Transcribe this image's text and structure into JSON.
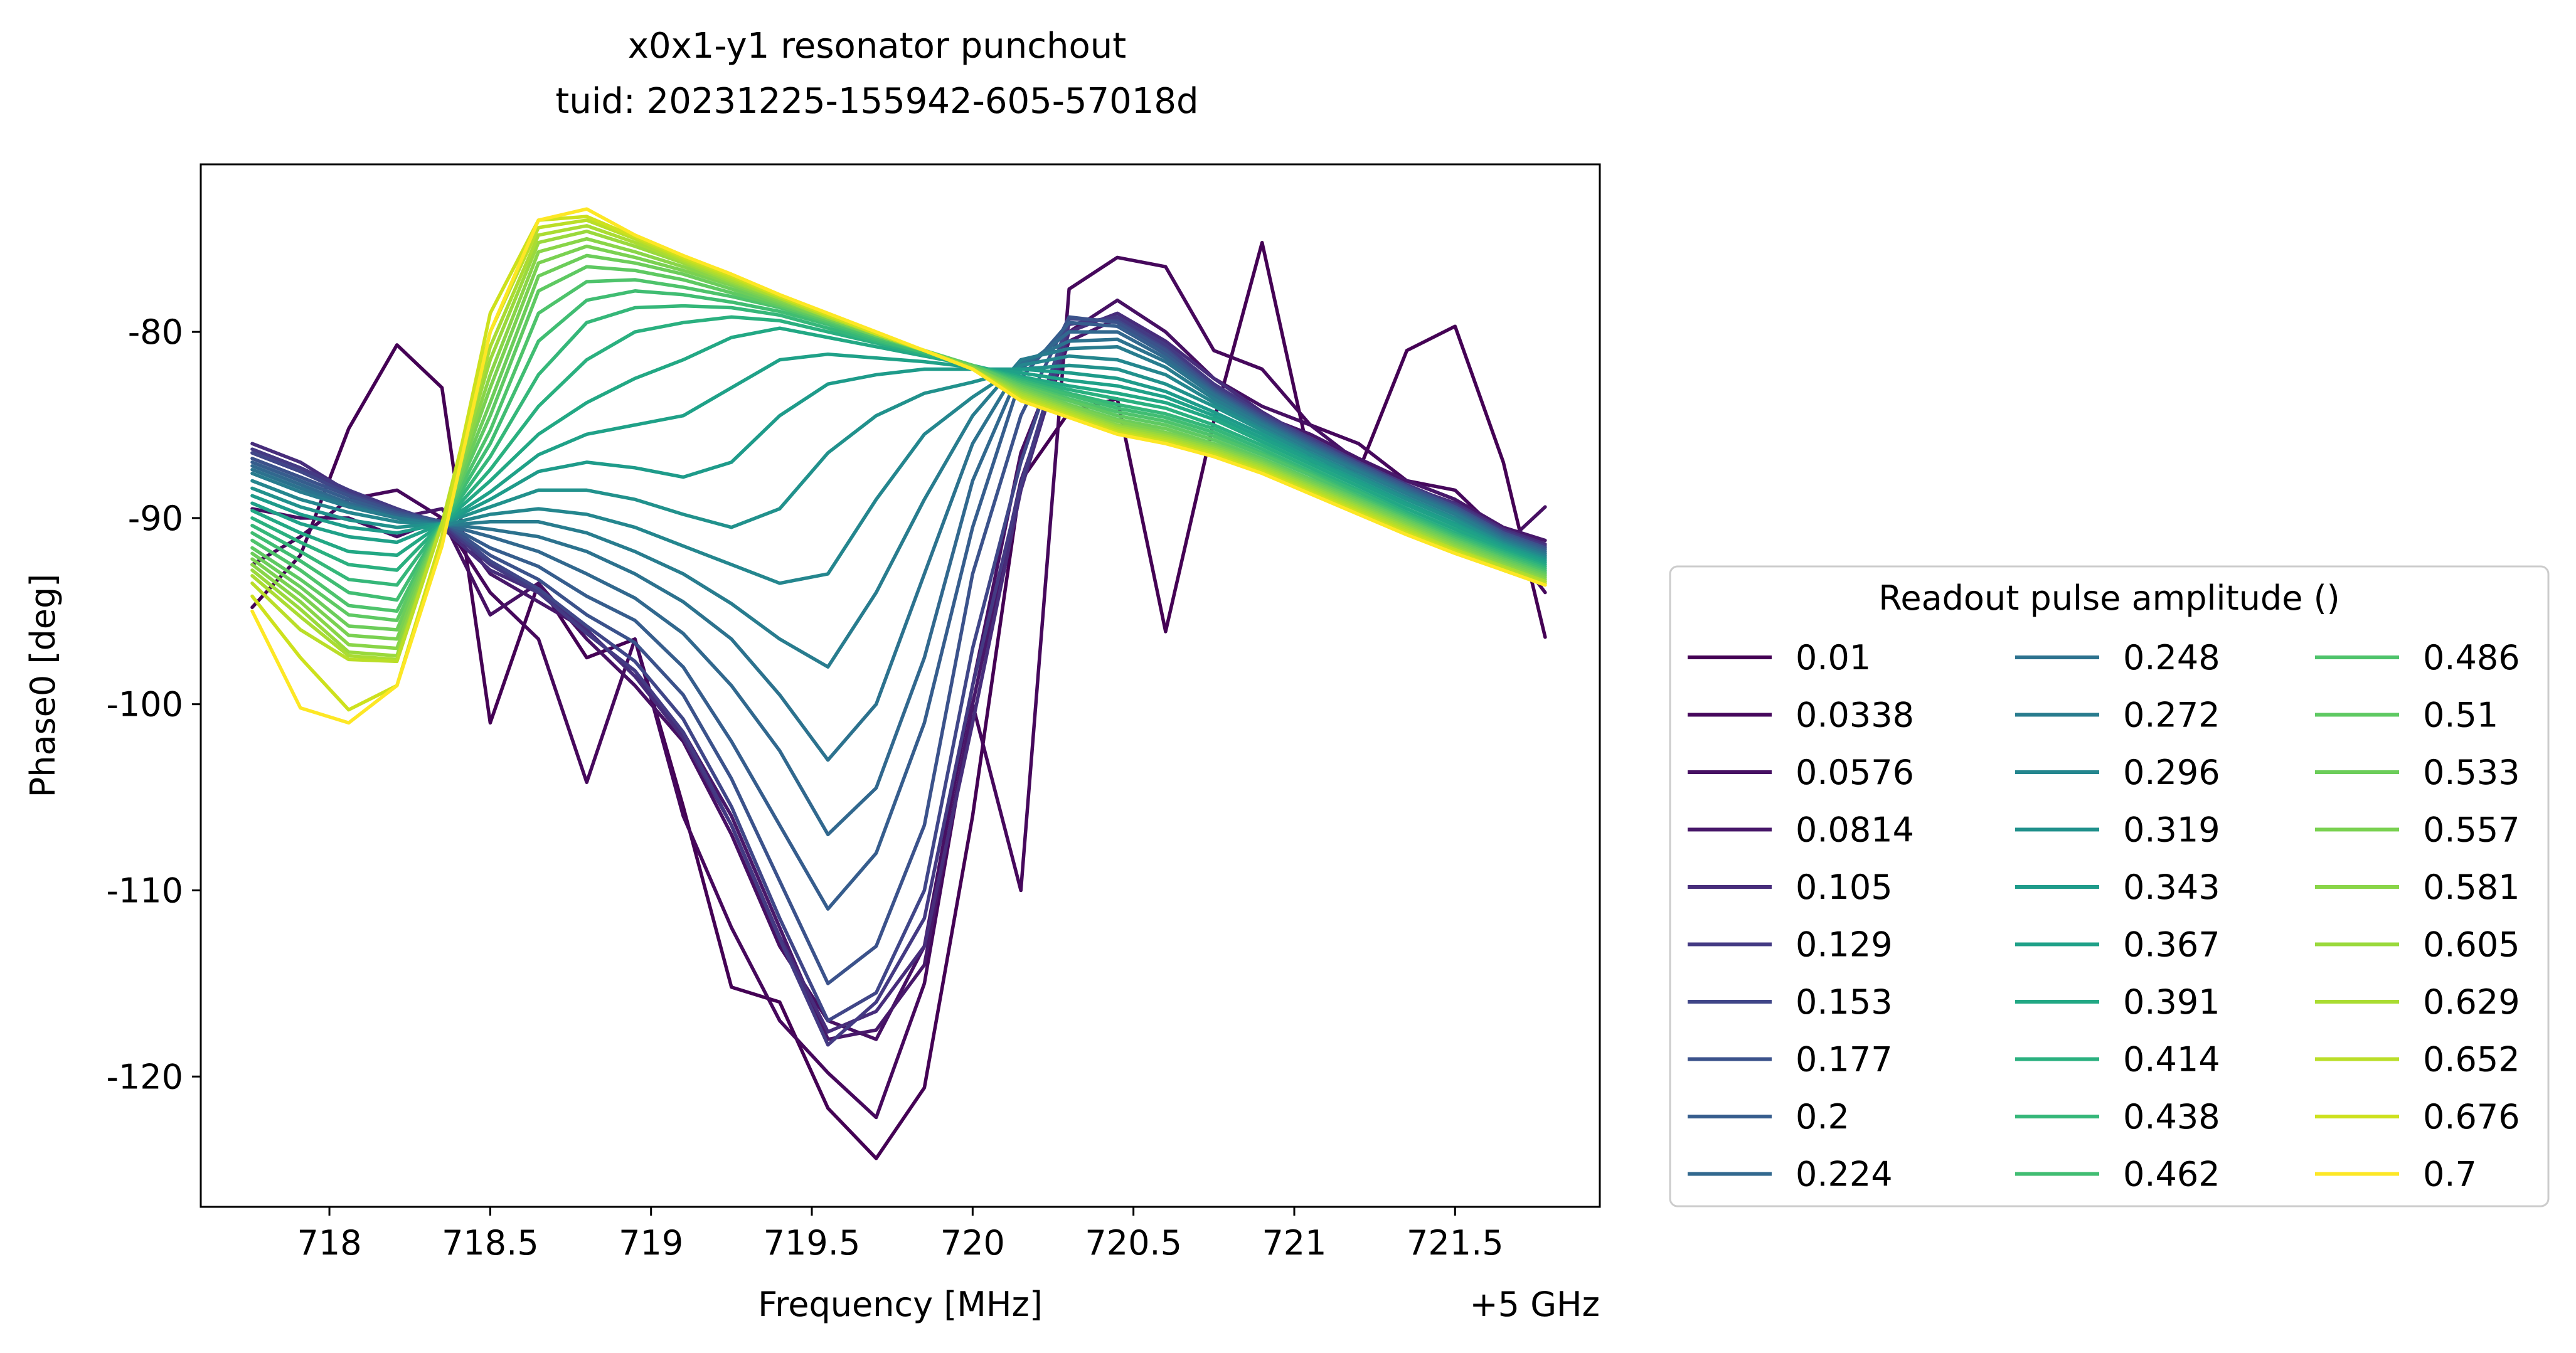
{
  "chart_data": {
    "type": "line",
    "title_line1": "x0x1-y1 resonator punchout",
    "title_line2": "tuid: 20231225-155942-605-57018d",
    "xlabel": "Frequency [MHz]",
    "ylabel": "Phase0 [deg]",
    "x_offset_label": "+5 GHz",
    "xlim": [
      717.6,
      721.95
    ],
    "ylim": [
      -127,
      -71
    ],
    "xticks": [
      718,
      718.5,
      719,
      719.5,
      720,
      720.5,
      721,
      721.5
    ],
    "xtick_labels": [
      "718",
      "718.5",
      "719",
      "719.5",
      "720",
      "720.5",
      "721",
      "721.5"
    ],
    "yticks": [
      -80,
      -90,
      -100,
      -110,
      -120
    ],
    "ytick_labels": [
      "-80",
      "-90",
      "-100",
      "-110",
      "-120"
    ],
    "grid": false,
    "legend_title": "Readout pulse amplitude ()",
    "legend_position": "lower-right-outside",
    "legend_columns": 3,
    "x": [
      717.76,
      717.91,
      718.06,
      718.21,
      718.35,
      718.5,
      718.65,
      718.8,
      718.95,
      719.1,
      719.25,
      719.4,
      719.55,
      719.7,
      719.85,
      720.0,
      720.15,
      720.3,
      720.45,
      720.6,
      720.75,
      720.9,
      721.05,
      721.2,
      721.35,
      721.5,
      721.65,
      721.78
    ],
    "series": [
      {
        "name": "0.01",
        "color": "#440154",
        "values": [
          -94.8,
          -92.0,
          -85.2,
          -80.7,
          -83.0,
          -101.0,
          -93.5,
          -97.5,
          -96.5,
          -105.5,
          -115.2,
          -116.0,
          -121.7,
          -124.4,
          -120.6,
          -106.0,
          -88.0,
          -84.3,
          -83.6,
          -96.1,
          -84.8,
          -75.2,
          -87.0,
          -87.5,
          -81.0,
          -79.7,
          -87.0,
          -96.4
        ]
      },
      {
        "name": "0.0338",
        "color": "#46085c",
        "values": [
          -92.5,
          -91.0,
          -89.0,
          -88.5,
          -90.0,
          -94.0,
          -96.5,
          -104.2,
          -96.5,
          -106.0,
          -112.0,
          -117.0,
          -119.8,
          -122.2,
          -115.0,
          -100.0,
          -110.0,
          -77.7,
          -76.0,
          -76.5,
          -81.0,
          -82.0,
          -85.0,
          -86.0,
          -88.0,
          -88.5,
          -91.0,
          -94.0
        ]
      },
      {
        "name": "0.0576",
        "color": "#471063",
        "values": [
          -89.5,
          -90.0,
          -90.0,
          -91.0,
          -90.0,
          -95.2,
          -93.5,
          -96.5,
          -99.0,
          -102.0,
          -107.0,
          -113.0,
          -117.0,
          -118.0,
          -113.0,
          -99.0,
          -86.5,
          -80.0,
          -78.3,
          -80.0,
          -82.5,
          -84.0,
          -85.0,
          -87.0,
          -88.0,
          -89.0,
          -91.5,
          -89.4
        ]
      },
      {
        "name": "0.0814",
        "color": "#48186a",
        "values": [
          -86.5,
          -87.5,
          -88.5,
          -90.0,
          -89.5,
          -93.0,
          -94.5,
          -96.0,
          -98.5,
          -101.5,
          -106.0,
          -112.0,
          -118.0,
          -117.5,
          -114.0,
          -100.0,
          -88.0,
          -80.5,
          -79.3,
          -81.0,
          -83.0,
          -84.5,
          -85.5,
          -86.8,
          -88.0,
          -89.0,
          -90.5,
          -91.2
        ]
      },
      {
        "name": "0.105",
        "color": "#472d7b",
        "values": [
          -86.0,
          -87.0,
          -88.6,
          -89.5,
          -90.5,
          -92.8,
          -94.0,
          -96.0,
          -98.5,
          -101.8,
          -106.5,
          -112.5,
          -117.6,
          -116.5,
          -113.0,
          -101.0,
          -88.5,
          -80.0,
          -79.0,
          -80.5,
          -82.5,
          -84.3,
          -85.8,
          -87.0,
          -88.3,
          -89.2,
          -90.6,
          -91.4
        ]
      },
      {
        "name": "0.129",
        "color": "#443a83",
        "values": [
          -86.3,
          -87.3,
          -88.5,
          -89.5,
          -90.3,
          -92.5,
          -94.0,
          -96.2,
          -98.2,
          -101.5,
          -106.5,
          -112.6,
          -118.3,
          -116.0,
          -111.5,
          -99.0,
          -88.2,
          -79.6,
          -79.2,
          -80.7,
          -82.8,
          -84.4,
          -85.7,
          -87.0,
          -88.2,
          -89.3,
          -90.7,
          -91.5
        ]
      },
      {
        "name": "0.153",
        "color": "#404688",
        "values": [
          -86.5,
          -87.5,
          -88.7,
          -89.6,
          -90.2,
          -92.3,
          -93.8,
          -95.8,
          -97.7,
          -100.8,
          -105.5,
          -111.5,
          -117.0,
          -115.5,
          -110.0,
          -97.0,
          -87.0,
          -79.3,
          -79.4,
          -80.9,
          -83.0,
          -84.5,
          -85.8,
          -87.1,
          -88.3,
          -89.4,
          -90.8,
          -91.6
        ]
      },
      {
        "name": "0.177",
        "color": "#3b528b",
        "values": [
          -86.8,
          -87.8,
          -88.8,
          -89.7,
          -90.2,
          -92.0,
          -93.3,
          -95.2,
          -96.7,
          -99.5,
          -104.0,
          -109.5,
          -115.0,
          -113.0,
          -106.5,
          -93.0,
          -84.5,
          -79.2,
          -79.5,
          -81.0,
          -83.1,
          -84.6,
          -85.9,
          -87.1,
          -88.3,
          -89.4,
          -90.8,
          -91.6
        ]
      },
      {
        "name": "0.2",
        "color": "#365d8d",
        "values": [
          -87.0,
          -88.0,
          -89.0,
          -89.8,
          -90.2,
          -91.6,
          -92.6,
          -94.2,
          -95.5,
          -98.0,
          -102.0,
          -106.5,
          -111.0,
          -108.0,
          -101.0,
          -90.5,
          -82.5,
          -79.5,
          -79.7,
          -81.2,
          -83.2,
          -84.7,
          -86.0,
          -87.2,
          -88.4,
          -89.5,
          -90.9,
          -91.7
        ]
      },
      {
        "name": "0.224",
        "color": "#31688e",
        "values": [
          -87.2,
          -88.2,
          -89.2,
          -89.9,
          -90.3,
          -91.0,
          -91.8,
          -93.0,
          -94.3,
          -96.2,
          -99.0,
          -102.5,
          -107.0,
          -104.5,
          -97.5,
          -88.0,
          -82.0,
          -80.0,
          -80.0,
          -81.4,
          -83.3,
          -84.8,
          -86.1,
          -87.3,
          -88.5,
          -89.6,
          -91.0,
          -91.8
        ]
      },
      {
        "name": "0.248",
        "color": "#2c728e",
        "values": [
          -87.4,
          -88.4,
          -89.3,
          -90.0,
          -90.3,
          -90.6,
          -91.0,
          -91.8,
          -93.0,
          -94.5,
          -96.5,
          -99.5,
          -103.0,
          -100.0,
          -93.0,
          -86.0,
          -81.7,
          -80.5,
          -80.4,
          -81.6,
          -83.4,
          -84.9,
          -86.2,
          -87.4,
          -88.6,
          -89.7,
          -91.1,
          -91.9
        ]
      },
      {
        "name": "0.272",
        "color": "#287c8e",
        "values": [
          -87.6,
          -88.6,
          -89.4,
          -90.0,
          -90.4,
          -90.2,
          -90.2,
          -90.8,
          -91.8,
          -93.0,
          -94.6,
          -96.5,
          -98.0,
          -94.0,
          -89.0,
          -84.5,
          -81.5,
          -80.9,
          -80.8,
          -81.9,
          -83.6,
          -85.0,
          -86.3,
          -87.5,
          -88.7,
          -89.8,
          -91.2,
          -92.0
        ]
      },
      {
        "name": "0.296",
        "color": "#24868e",
        "values": [
          -88.0,
          -89.0,
          -89.7,
          -90.2,
          -90.4,
          -89.8,
          -89.5,
          -89.8,
          -90.5,
          -91.5,
          -92.5,
          -93.5,
          -93.0,
          -89.0,
          -85.5,
          -83.5,
          -81.8,
          -81.3,
          -81.5,
          -82.3,
          -83.8,
          -85.2,
          -86.5,
          -87.7,
          -88.9,
          -90.0,
          -91.3,
          -92.1
        ]
      },
      {
        "name": "0.319",
        "color": "#21918c",
        "values": [
          -88.4,
          -89.4,
          -90.1,
          -90.5,
          -90.3,
          -89.4,
          -88.5,
          -88.5,
          -89.0,
          -89.8,
          -90.5,
          -89.5,
          -86.5,
          -84.5,
          -83.3,
          -82.7,
          -82.0,
          -81.8,
          -82.0,
          -82.8,
          -84.0,
          -85.3,
          -86.6,
          -87.8,
          -89.0,
          -90.1,
          -91.4,
          -92.2
        ]
      },
      {
        "name": "0.343",
        "color": "#1e9b8a",
        "values": [
          -88.8,
          -89.8,
          -90.5,
          -90.8,
          -90.3,
          -89.0,
          -87.5,
          -87.0,
          -87.3,
          -87.8,
          -87.0,
          -84.5,
          -82.8,
          -82.3,
          -82.0,
          -82.0,
          -82.0,
          -82.2,
          -82.5,
          -83.2,
          -84.3,
          -85.5,
          -86.8,
          -88.0,
          -89.2,
          -90.3,
          -91.5,
          -92.3
        ]
      },
      {
        "name": "0.367",
        "color": "#1fa188",
        "values": [
          -89.2,
          -90.3,
          -91.0,
          -91.3,
          -90.3,
          -88.6,
          -86.6,
          -85.5,
          -85.0,
          -84.5,
          -83.0,
          -81.5,
          -81.2,
          -81.4,
          -81.6,
          -81.9,
          -82.2,
          -82.6,
          -82.9,
          -83.5,
          -84.5,
          -85.7,
          -86.9,
          -88.1,
          -89.3,
          -90.4,
          -91.6,
          -92.4
        ]
      },
      {
        "name": "0.391",
        "color": "#22a884",
        "values": [
          -89.6,
          -90.8,
          -91.8,
          -92.0,
          -90.3,
          -88.0,
          -85.5,
          -83.8,
          -82.5,
          -81.5,
          -80.3,
          -79.8,
          -80.3,
          -80.8,
          -81.3,
          -81.8,
          -82.4,
          -82.9,
          -83.3,
          -83.8,
          -84.7,
          -85.9,
          -87.1,
          -88.3,
          -89.5,
          -90.6,
          -91.7,
          -92.5
        ]
      },
      {
        "name": "0.414",
        "color": "#2ab07f",
        "values": [
          -90.0,
          -91.3,
          -92.5,
          -92.8,
          -90.3,
          -87.4,
          -84.0,
          -81.5,
          -80.0,
          -79.5,
          -79.2,
          -79.4,
          -80.0,
          -80.6,
          -81.2,
          -81.8,
          -82.5,
          -83.1,
          -83.6,
          -84.1,
          -85.0,
          -86.1,
          -87.3,
          -88.5,
          -89.7,
          -90.8,
          -91.8,
          -92.6
        ]
      },
      {
        "name": "0.438",
        "color": "#35b779",
        "values": [
          -90.4,
          -91.8,
          -93.3,
          -93.6,
          -90.3,
          -86.7,
          -82.3,
          -79.5,
          -78.7,
          -78.6,
          -78.7,
          -79.1,
          -79.8,
          -80.5,
          -81.1,
          -81.8,
          -82.6,
          -83.3,
          -83.9,
          -84.4,
          -85.2,
          -86.3,
          -87.5,
          -88.6,
          -89.8,
          -90.9,
          -91.9,
          -92.7
        ]
      },
      {
        "name": "0.462",
        "color": "#40bd72",
        "values": [
          -90.8,
          -92.3,
          -94.0,
          -94.4,
          -90.3,
          -86.0,
          -80.5,
          -78.3,
          -77.8,
          -78.0,
          -78.4,
          -78.9,
          -79.6,
          -80.4,
          -81.1,
          -81.8,
          -82.7,
          -83.4,
          -84.1,
          -84.6,
          -85.4,
          -86.5,
          -87.6,
          -88.8,
          -89.9,
          -91.0,
          -92.0,
          -92.8
        ]
      },
      {
        "name": "0.486",
        "color": "#4ec36b",
        "values": [
          -91.2,
          -92.8,
          -94.7,
          -95.0,
          -90.3,
          -85.3,
          -79.0,
          -77.3,
          -77.2,
          -77.6,
          -78.1,
          -78.7,
          -79.5,
          -80.3,
          -81.0,
          -81.8,
          -82.8,
          -83.6,
          -84.3,
          -84.8,
          -85.6,
          -86.6,
          -87.7,
          -88.9,
          -90.0,
          -91.1,
          -92.1,
          -92.9
        ]
      },
      {
        "name": "0.51",
        "color": "#5ec962",
        "values": [
          -91.6,
          -93.3,
          -95.2,
          -95.5,
          -90.3,
          -84.5,
          -77.8,
          -76.5,
          -76.7,
          -77.2,
          -77.9,
          -78.6,
          -79.4,
          -80.2,
          -81.0,
          -81.8,
          -82.9,
          -83.7,
          -84.5,
          -85.0,
          -85.8,
          -86.8,
          -87.9,
          -89.0,
          -90.1,
          -91.2,
          -92.2,
          -93.0
        ]
      },
      {
        "name": "0.533",
        "color": "#6ccd5a",
        "values": [
          -91.9,
          -93.7,
          -95.8,
          -96.0,
          -90.3,
          -83.8,
          -77.0,
          -75.9,
          -76.3,
          -76.9,
          -77.7,
          -78.5,
          -79.3,
          -80.2,
          -81.0,
          -81.9,
          -83.0,
          -83.9,
          -84.7,
          -85.2,
          -86.0,
          -86.9,
          -88.0,
          -89.1,
          -90.2,
          -91.3,
          -92.3,
          -93.1
        ]
      },
      {
        "name": "0.557",
        "color": "#7ad151",
        "values": [
          -92.2,
          -94.1,
          -96.3,
          -96.5,
          -90.3,
          -83.0,
          -76.3,
          -75.4,
          -76.0,
          -76.7,
          -77.5,
          -78.4,
          -79.3,
          -80.2,
          -81.0,
          -81.9,
          -83.1,
          -84.0,
          -84.8,
          -85.4,
          -86.1,
          -87.0,
          -88.1,
          -89.2,
          -90.3,
          -91.4,
          -92.4,
          -93.2
        ]
      },
      {
        "name": "0.581",
        "color": "#89d548",
        "values": [
          -92.5,
          -94.5,
          -96.8,
          -97.0,
          -90.3,
          -82.3,
          -75.7,
          -75.0,
          -75.7,
          -76.5,
          -77.4,
          -78.3,
          -79.2,
          -80.1,
          -81.0,
          -81.9,
          -83.2,
          -84.1,
          -85.0,
          -85.5,
          -86.2,
          -87.1,
          -88.2,
          -89.3,
          -90.4,
          -91.5,
          -92.5,
          -93.3
        ]
      },
      {
        "name": "0.605",
        "color": "#9ad93c",
        "values": [
          -92.8,
          -94.9,
          -97.2,
          -97.4,
          -90.3,
          -81.5,
          -75.2,
          -74.6,
          -75.4,
          -76.3,
          -77.3,
          -78.2,
          -79.2,
          -80.1,
          -81.0,
          -82.0,
          -83.3,
          -84.2,
          -85.1,
          -85.6,
          -86.3,
          -87.2,
          -88.3,
          -89.4,
          -90.5,
          -91.6,
          -92.6,
          -93.4
        ]
      },
      {
        "name": "0.629",
        "color": "#aadc32",
        "values": [
          -93.1,
          -95.3,
          -97.4,
          -97.6,
          -90.3,
          -80.8,
          -74.8,
          -74.3,
          -75.2,
          -76.2,
          -77.2,
          -78.2,
          -79.2,
          -80.1,
          -81.0,
          -82.0,
          -83.4,
          -84.3,
          -85.2,
          -85.7,
          -86.4,
          -87.3,
          -88.4,
          -89.5,
          -90.6,
          -91.7,
          -92.6,
          -93.4
        ]
      },
      {
        "name": "0.652",
        "color": "#bade28",
        "values": [
          -93.5,
          -96.0,
          -97.6,
          -97.7,
          -90.3,
          -80.0,
          -74.4,
          -74.0,
          -75.0,
          -76.1,
          -77.1,
          -78.1,
          -79.1,
          -80.1,
          -81.0,
          -82.0,
          -83.5,
          -84.4,
          -85.3,
          -85.8,
          -86.5,
          -87.4,
          -88.5,
          -89.6,
          -90.7,
          -91.7,
          -92.7,
          -93.5
        ]
      },
      {
        "name": "0.676",
        "color": "#cde11d",
        "values": [
          -94.2,
          -97.5,
          -100.3,
          -99.0,
          -91.0,
          -79.0,
          -74.0,
          -73.8,
          -74.9,
          -76.0,
          -77.0,
          -78.1,
          -79.1,
          -80.1,
          -81.0,
          -82.0,
          -83.6,
          -84.5,
          -85.4,
          -85.9,
          -86.6,
          -87.5,
          -88.6,
          -89.7,
          -90.8,
          -91.8,
          -92.8,
          -93.6
        ]
      },
      {
        "name": "0.7",
        "color": "#fde725",
        "values": [
          -95.0,
          -100.2,
          -101.0,
          -99.0,
          -91.5,
          -80.0,
          -74.0,
          -73.4,
          -74.8,
          -75.9,
          -76.9,
          -78.0,
          -79.0,
          -80.0,
          -81.0,
          -82.0,
          -83.7,
          -84.6,
          -85.5,
          -86.0,
          -86.7,
          -87.6,
          -88.7,
          -89.8,
          -90.9,
          -91.9,
          -92.8,
          -93.6
        ]
      }
    ]
  }
}
